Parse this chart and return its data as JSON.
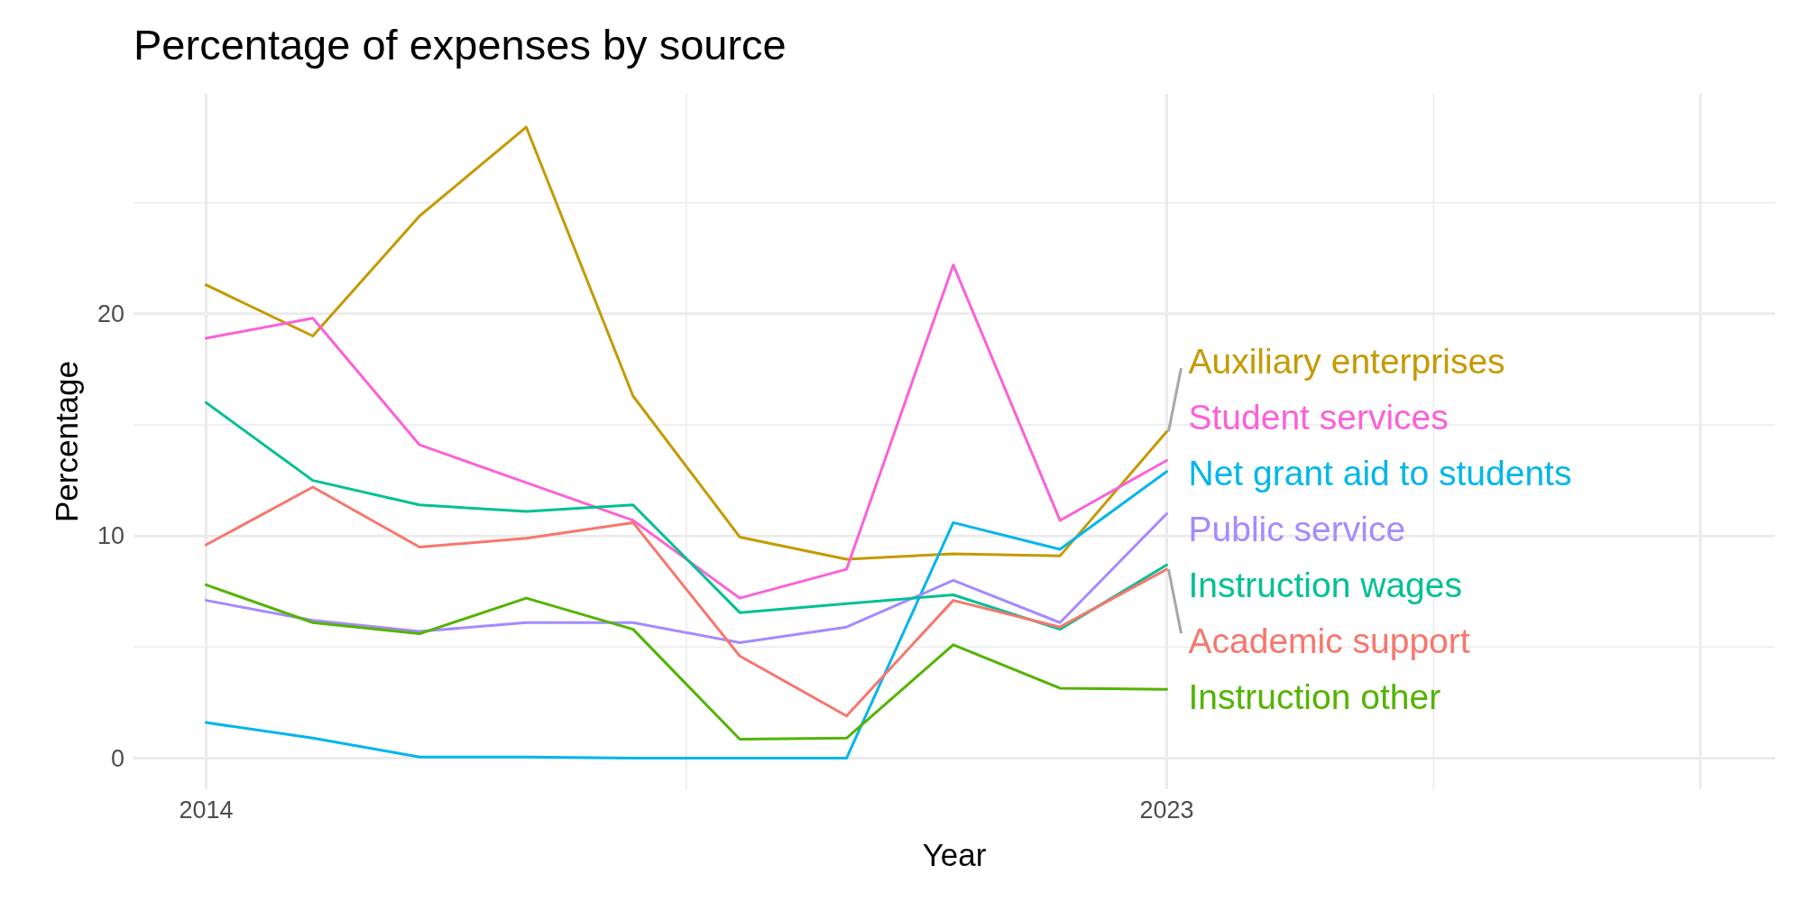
{
  "chart_data": {
    "type": "line",
    "title": "Percentage of expenses by source",
    "xlabel": "Year",
    "ylabel": "Percentage",
    "x": [
      2014,
      2015,
      2016,
      2017,
      2018,
      2019,
      2020,
      2021,
      2022,
      2023
    ],
    "xlim": [
      2013.32,
      2028.7
    ],
    "xticks": [
      2014,
      {
        "value": 2018.5,
        "label": null
      },
      2023,
      {
        "value": 2025.5,
        "label": null
      },
      {
        "value": 2028,
        "label": null
      }
    ],
    "ylim": [
      -1.4,
      29.9
    ],
    "yticks": [
      0,
      {
        "value": 5,
        "label": null
      },
      10,
      {
        "value": 15,
        "label": null
      },
      20,
      {
        "value": 25,
        "label": null
      }
    ],
    "grid": true,
    "line_style": "solid",
    "marker": "none",
    "series": [
      {
        "name": "Auxiliary enterprises",
        "color": "#c49a00",
        "values": [
          21.3,
          19.0,
          24.4,
          28.4,
          16.3,
          9.95,
          8.95,
          9.2,
          9.1,
          14.7
        ]
      },
      {
        "name": "Student services",
        "color": "#fb61d7",
        "values": [
          18.9,
          19.8,
          14.1,
          12.4,
          10.7,
          7.2,
          8.5,
          22.2,
          10.7,
          13.4
        ]
      },
      {
        "name": "Net grant aid to students",
        "color": "#00b6eb",
        "values": [
          1.6,
          0.9,
          0.05,
          0.05,
          0.0,
          0.0,
          0.0,
          10.6,
          9.4,
          12.9
        ]
      },
      {
        "name": "Public service",
        "color": "#a58aff",
        "values": [
          7.1,
          6.2,
          5.7,
          6.1,
          6.1,
          5.2,
          5.9,
          8.0,
          6.1,
          11.0
        ]
      },
      {
        "name": "Instruction wages",
        "color": "#00c094",
        "values": [
          16.0,
          12.5,
          11.4,
          11.1,
          11.4,
          6.55,
          6.95,
          7.35,
          5.8,
          8.7
        ]
      },
      {
        "name": "Academic support",
        "color": "#f8766d",
        "values": [
          9.6,
          12.2,
          9.5,
          9.9,
          10.6,
          4.6,
          1.9,
          7.1,
          5.9,
          8.5
        ]
      },
      {
        "name": "Instruction other",
        "color": "#53b400",
        "values": [
          7.8,
          6.1,
          5.6,
          7.2,
          5.8,
          0.85,
          0.9,
          5.1,
          3.15,
          3.1
        ]
      }
    ]
  }
}
